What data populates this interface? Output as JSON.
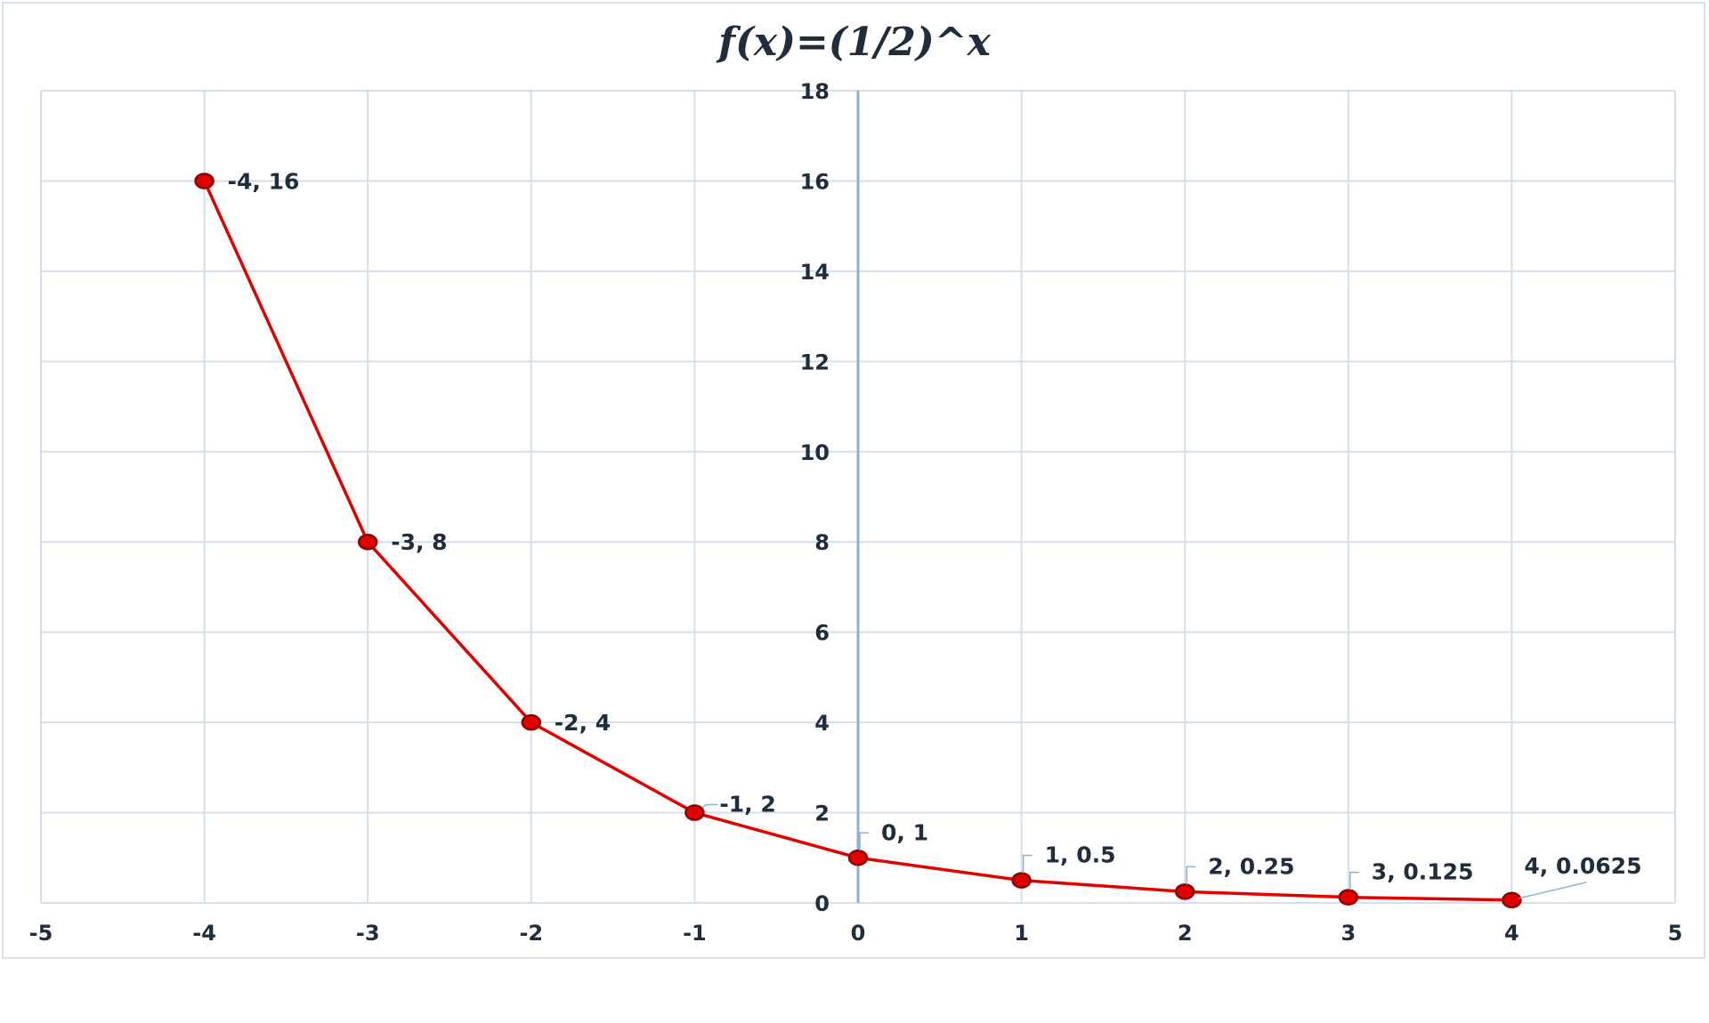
{
  "chart_data": {
    "type": "line",
    "title": "f(x)=(1/2)^x",
    "xlabel": "",
    "ylabel": "",
    "xlim": [
      -5,
      5
    ],
    "ylim": [
      0,
      18
    ],
    "x_ticks": [
      "-5",
      "-4",
      "-3",
      "-2",
      "-1",
      "0",
      "1",
      "2",
      "3",
      "4",
      "5"
    ],
    "y_ticks": [
      "0",
      "2",
      "4",
      "6",
      "8",
      "10",
      "12",
      "14",
      "16",
      "18"
    ],
    "grid": true,
    "legend": "none",
    "series": [
      {
        "color": "#e00000",
        "points": [
          {
            "x": -4,
            "y": 16,
            "label": "-4, 16"
          },
          {
            "x": -3,
            "y": 8,
            "label": "-3, 8"
          },
          {
            "x": -2,
            "y": 4,
            "label": "-2, 4"
          },
          {
            "x": -1,
            "y": 2,
            "label": "-1, 2"
          },
          {
            "x": 0,
            "y": 1,
            "label": "0, 1"
          },
          {
            "x": 1,
            "y": 0.5,
            "label": "1, 0.5"
          },
          {
            "x": 2,
            "y": 0.25,
            "label": "2, 0.25"
          },
          {
            "x": 3,
            "y": 0.125,
            "label": "3, 0.125"
          },
          {
            "x": 4,
            "y": 0.0625,
            "label": "4, 0.0625"
          }
        ]
      }
    ],
    "colors": {
      "grid": "#d3dfea",
      "y_axis": "#8fb0cc",
      "line": "#e00000",
      "marker_fill": "#e00000",
      "marker_stroke": "#8a0000",
      "text": "#1f2d3d",
      "leader": "#8fb0cc"
    }
  }
}
